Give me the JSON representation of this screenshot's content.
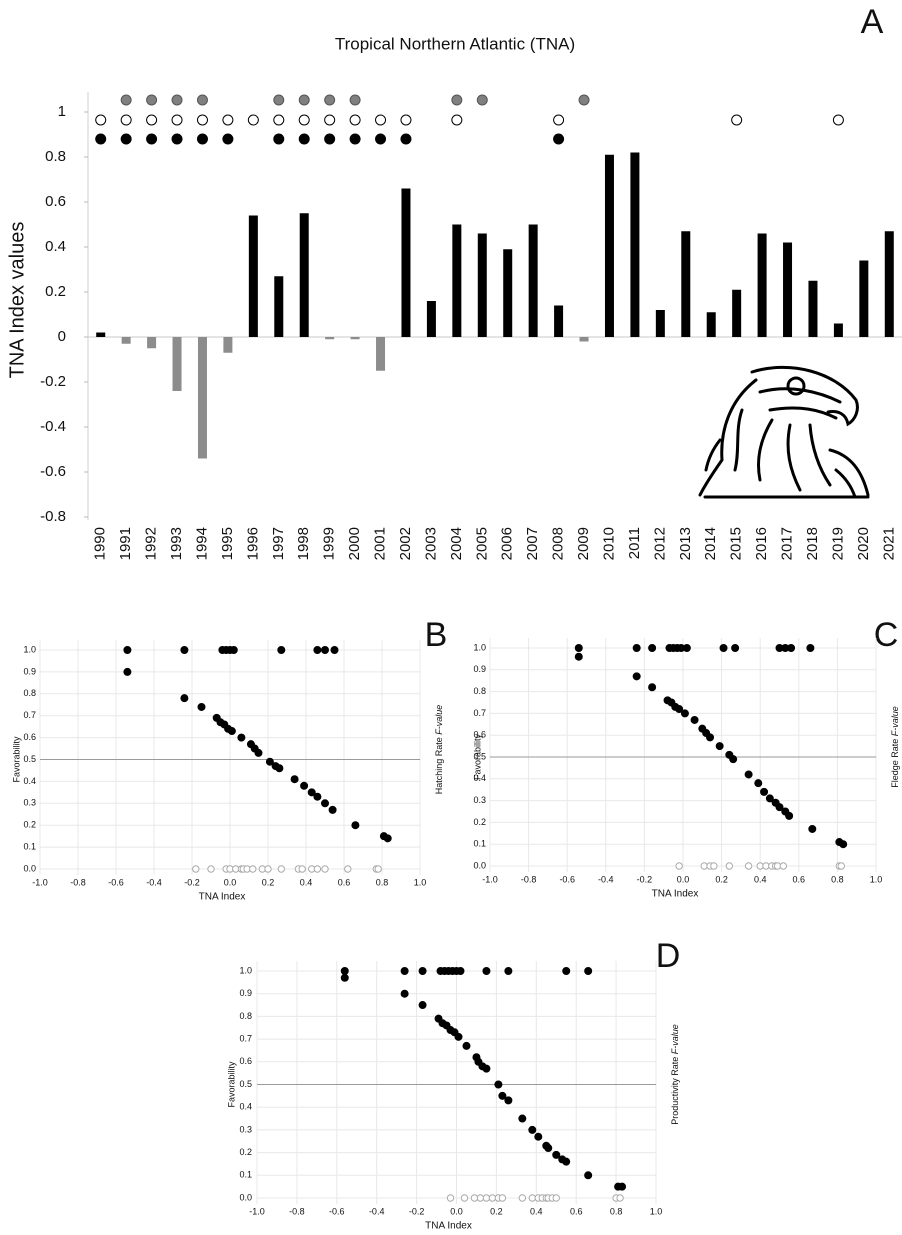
{
  "chart_data": [
    {
      "type": "bar",
      "panel": "A",
      "title": "Tropical Northern Atlantic (TNA)",
      "ylabel": "TNA Index values",
      "categories": [
        "1990",
        "1991",
        "1992",
        "1993",
        "1994",
        "1995",
        "1996",
        "1997",
        "1998",
        "1999",
        "2000",
        "2001",
        "2002",
        "2003",
        "2004",
        "2005",
        "2006",
        "2007",
        "2008",
        "2009",
        "2010",
        "2011",
        "2012",
        "2013",
        "2014",
        "2015",
        "2016",
        "2017",
        "2018",
        "2019",
        "2020",
        "2021"
      ],
      "values": [
        0.02,
        -0.03,
        -0.05,
        -0.24,
        -0.54,
        -0.07,
        0.54,
        0.27,
        0.55,
        -0.01,
        -0.01,
        -0.15,
        0.66,
        0.16,
        0.5,
        0.46,
        0.39,
        0.5,
        0.14,
        -0.02,
        0.81,
        0.82,
        0.12,
        0.47,
        0.11,
        0.21,
        0.46,
        0.42,
        0.25,
        0.06,
        0.34,
        0.47
      ],
      "positive_color": "#000000",
      "negative_color": "#8c8c8c",
      "ylim": [
        -0.8,
        1
      ],
      "yticks": [
        -0.8,
        -0.6,
        -0.4,
        -0.2,
        0,
        0.2,
        0.4,
        0.6,
        0.8,
        1
      ],
      "marker_rows": [
        {
          "fill": "#808080",
          "years": [
            "1991",
            "1992",
            "1993",
            "1994",
            "1997",
            "1998",
            "1999",
            "2000",
            "2004",
            "2005",
            "2009"
          ]
        },
        {
          "fill": "#ffffff",
          "years": [
            "1990",
            "1991",
            "1992",
            "1993",
            "1994",
            "1995",
            "1996",
            "1997",
            "1998",
            "1999",
            "2000",
            "2001",
            "2002",
            "2004",
            "2008",
            "2015",
            "2019"
          ]
        },
        {
          "fill": "#000000",
          "years": [
            "1990",
            "1991",
            "1992",
            "1993",
            "1994",
            "1995",
            "1997",
            "1998",
            "1999",
            "2000",
            "2001",
            "2002",
            "2008"
          ]
        }
      ]
    },
    {
      "type": "scatter",
      "panel": "B",
      "xlabel": "TNA Index",
      "ylabel": "Favorability",
      "right_label": [
        "Hatching Rate ",
        "F-value"
      ],
      "xlim": [
        -1,
        1
      ],
      "ylim": [
        0,
        1
      ],
      "hline": 0.5,
      "xticks": [
        {
          "value": -1,
          "label": "-1.0"
        },
        {
          "value": -0.8,
          "label": "-0.8"
        },
        {
          "value": -0.6,
          "label": "-0.6"
        },
        {
          "value": -0.4,
          "label": "-0.4"
        },
        {
          "value": -0.2,
          "label": "-0.2"
        },
        {
          "value": 0,
          "label": "0.0"
        },
        {
          "value": 0.2,
          "label": "0.2"
        },
        {
          "value": 0.4,
          "label": "0.4"
        },
        {
          "value": 0.6,
          "label": "0.6"
        },
        {
          "value": 0.8,
          "label": "0.8"
        },
        {
          "value": 1,
          "label": "1.0"
        }
      ],
      "yticks": [
        {
          "value": 0,
          "label": "0.0"
        },
        {
          "value": 0.1,
          "label": "0.1"
        },
        {
          "value": 0.2,
          "label": "0.2"
        },
        {
          "value": 0.3,
          "label": "0.3"
        },
        {
          "value": 0.4,
          "label": "0.4"
        },
        {
          "value": 0.5,
          "label": "0.5"
        },
        {
          "value": 0.6,
          "label": "0.6"
        },
        {
          "value": 0.7,
          "label": "0.7"
        },
        {
          "value": 0.8,
          "label": "0.8"
        },
        {
          "value": 0.9,
          "label": "0.9"
        },
        {
          "value": 1,
          "label": "1.0"
        }
      ],
      "series": [
        {
          "color": "#000000",
          "filled": true,
          "x": [
            -0.54,
            -0.54,
            -0.24,
            -0.24,
            -0.15,
            -0.04,
            -0.02,
            0.0,
            0.02,
            -0.07,
            -0.05,
            -0.03,
            -0.01,
            0.01,
            0.06,
            0.11,
            0.13,
            0.15,
            0.21,
            0.24,
            0.26,
            0.27,
            0.34,
            0.39,
            0.43,
            0.46,
            0.5,
            0.54,
            0.46,
            0.5,
            0.55,
            0.66,
            0.81,
            0.83
          ],
          "y": [
            1,
            0.9,
            1,
            0.78,
            0.74,
            1,
            1,
            1,
            1,
            0.69,
            0.67,
            0.66,
            0.64,
            0.63,
            0.6,
            0.57,
            0.55,
            0.53,
            0.49,
            0.47,
            0.46,
            1,
            0.41,
            0.38,
            0.35,
            0.33,
            0.3,
            0.27,
            1,
            1,
            1,
            0.2,
            0.15,
            0.14
          ]
        },
        {
          "color": "#aaaaaa",
          "filled": false,
          "x": [
            -0.18,
            -0.1,
            -0.02,
            0.0,
            0.03,
            0.06,
            0.07,
            0.09,
            0.12,
            0.17,
            0.2,
            0.27,
            0.36,
            0.38,
            0.43,
            0.46,
            0.5,
            0.62,
            0.77,
            0.78
          ],
          "y": [
            0,
            0,
            0,
            0,
            0,
            0,
            0,
            0,
            0,
            0,
            0,
            0,
            0,
            0,
            0,
            0,
            0,
            0,
            0,
            0
          ]
        }
      ]
    },
    {
      "type": "scatter",
      "panel": "C",
      "xlabel": "TNA Index",
      "ylabel": "Favorability",
      "right_label": [
        "Fledge Rate ",
        "F-value"
      ],
      "xlim": [
        -1,
        1
      ],
      "ylim": [
        0,
        1
      ],
      "hline": 0.5,
      "xticks": [
        {
          "value": -1,
          "label": "-1.0"
        },
        {
          "value": -0.8,
          "label": "-0.8"
        },
        {
          "value": -0.6,
          "label": "-0.6"
        },
        {
          "value": -0.4,
          "label": "-0.4"
        },
        {
          "value": -0.2,
          "label": "-0.2"
        },
        {
          "value": 0,
          "label": "0.0"
        },
        {
          "value": 0.2,
          "label": "0.2"
        },
        {
          "value": 0.4,
          "label": "0.4"
        },
        {
          "value": 0.6,
          "label": "0.6"
        },
        {
          "value": 0.8,
          "label": "0.8"
        },
        {
          "value": 1,
          "label": "1.0"
        }
      ],
      "yticks": [
        {
          "value": 0,
          "label": "0.0"
        },
        {
          "value": 0.1,
          "label": "0.1"
        },
        {
          "value": 0.2,
          "label": "0.2"
        },
        {
          "value": 0.3,
          "label": "0.3"
        },
        {
          "value": 0.4,
          "label": "0.4"
        },
        {
          "value": 0.5,
          "label": "0.5"
        },
        {
          "value": 0.6,
          "label": "0.6"
        },
        {
          "value": 0.7,
          "label": "0.7"
        },
        {
          "value": 0.8,
          "label": "0.8"
        },
        {
          "value": 0.9,
          "label": "0.9"
        },
        {
          "value": 1,
          "label": "1.0"
        }
      ],
      "series": [
        {
          "color": "#000000",
          "filled": true,
          "x": [
            -0.54,
            -0.54,
            -0.24,
            -0.24,
            -0.16,
            -0.16,
            -0.07,
            -0.05,
            -0.03,
            -0.01,
            0.02,
            -0.08,
            -0.06,
            -0.04,
            -0.02,
            0.01,
            0.06,
            0.1,
            0.12,
            0.14,
            0.19,
            0.21,
            0.24,
            0.26,
            0.27,
            0.34,
            0.39,
            0.42,
            0.45,
            0.48,
            0.5,
            0.53,
            0.55,
            0.5,
            0.53,
            0.56,
            0.66,
            0.67,
            0.81,
            0.83
          ],
          "y": [
            1,
            0.96,
            1,
            0.87,
            0.82,
            1,
            1,
            1,
            1,
            1,
            1,
            0.76,
            0.75,
            0.73,
            0.72,
            0.7,
            0.67,
            0.63,
            0.61,
            0.59,
            0.55,
            1,
            0.51,
            0.49,
            1,
            0.42,
            0.38,
            0.34,
            0.31,
            0.29,
            0.27,
            0.25,
            0.23,
            1,
            1,
            1,
            1,
            0.17,
            0.11,
            0.1
          ]
        },
        {
          "color": "#aaaaaa",
          "filled": false,
          "x": [
            -0.02,
            0.11,
            0.14,
            0.16,
            0.24,
            0.34,
            0.4,
            0.43,
            0.46,
            0.48,
            0.49,
            0.52,
            0.81,
            0.82
          ],
          "y": [
            0,
            0,
            0,
            0,
            0,
            0,
            0,
            0,
            0,
            0,
            0,
            0,
            0,
            0
          ]
        }
      ]
    },
    {
      "type": "scatter",
      "panel": "D",
      "xlabel": "TNA Index",
      "ylabel": "Favorability",
      "right_label": [
        "Productivity Rate ",
        "F-value"
      ],
      "xlim": [
        -1,
        1
      ],
      "ylim": [
        0,
        1
      ],
      "hline": 0.5,
      "xticks": [
        {
          "value": -1,
          "label": "-1.0"
        },
        {
          "value": -0.8,
          "label": "-0.8"
        },
        {
          "value": -0.6,
          "label": "-0.6"
        },
        {
          "value": -0.4,
          "label": "-0.4"
        },
        {
          "value": -0.2,
          "label": "-0.2"
        },
        {
          "value": 0,
          "label": "0.0"
        },
        {
          "value": 0.2,
          "label": "0.2"
        },
        {
          "value": 0.4,
          "label": "0.4"
        },
        {
          "value": 0.6,
          "label": "0.6"
        },
        {
          "value": 0.8,
          "label": "0.8"
        },
        {
          "value": 1,
          "label": "1.0"
        }
      ],
      "yticks": [
        {
          "value": 0,
          "label": "0.0"
        },
        {
          "value": 0.1,
          "label": "0.1"
        },
        {
          "value": 0.2,
          "label": "0.2"
        },
        {
          "value": 0.3,
          "label": "0.3"
        },
        {
          "value": 0.4,
          "label": "0.4"
        },
        {
          "value": 0.5,
          "label": "0.5"
        },
        {
          "value": 0.6,
          "label": "0.6"
        },
        {
          "value": 0.7,
          "label": "0.7"
        },
        {
          "value": 0.8,
          "label": "0.8"
        },
        {
          "value": 0.9,
          "label": "0.9"
        },
        {
          "value": 1,
          "label": "1.0"
        }
      ],
      "series": [
        {
          "color": "#000000",
          "filled": true,
          "x": [
            -0.56,
            -0.56,
            -0.26,
            -0.26,
            -0.17,
            -0.17,
            -0.08,
            -0.06,
            -0.04,
            -0.02,
            0.0,
            0.02,
            -0.09,
            -0.07,
            -0.05,
            -0.03,
            -0.01,
            0.01,
            0.05,
            0.1,
            0.11,
            0.13,
            0.15,
            0.15,
            0.21,
            0.23,
            0.26,
            0.26,
            0.33,
            0.38,
            0.41,
            0.45,
            0.46,
            0.5,
            0.53,
            0.55,
            0.55,
            0.66,
            0.66,
            0.81,
            0.83
          ],
          "y": [
            1,
            0.97,
            1,
            0.9,
            1,
            0.85,
            1,
            1,
            1,
            1,
            1,
            1,
            0.79,
            0.77,
            0.76,
            0.74,
            0.73,
            0.71,
            0.67,
            0.62,
            0.6,
            0.58,
            0.57,
            1,
            0.5,
            0.45,
            0.43,
            1,
            0.35,
            0.3,
            0.27,
            0.23,
            0.22,
            0.19,
            0.17,
            0.16,
            1,
            1,
            0.1,
            0.05,
            0.05
          ]
        },
        {
          "color": "#aaaaaa",
          "filled": false,
          "x": [
            -0.03,
            0.04,
            0.09,
            0.12,
            0.15,
            0.18,
            0.21,
            0.23,
            0.33,
            0.38,
            0.41,
            0.43,
            0.45,
            0.46,
            0.48,
            0.5,
            0.8,
            0.82
          ],
          "y": [
            0,
            0,
            0,
            0,
            0,
            0,
            0,
            0,
            0,
            0,
            0,
            0,
            0,
            0,
            0,
            0,
            0,
            0
          ]
        }
      ]
    }
  ]
}
